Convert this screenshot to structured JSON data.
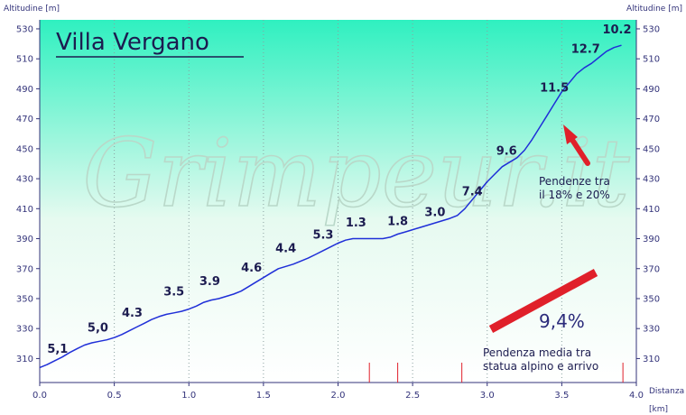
{
  "chart_data": {
    "type": "line",
    "title": "Villa Vergano",
    "watermark": "Grimpeur.it",
    "ylabel_left": "Altitudine [m]",
    "ylabel_right": "Altitudine [m]",
    "xlabel": "Distanza",
    "xunit": "[km]",
    "xlim": [
      0,
      4.0
    ],
    "ylim": [
      294,
      536
    ],
    "x_ticks": [
      "0.0",
      "0.5",
      "1.0",
      "1.5",
      "2.0",
      "2.5",
      "3.0",
      "3.5",
      "4.0"
    ],
    "y_ticks": [
      "310",
      "330",
      "350",
      "370",
      "390",
      "410",
      "430",
      "450",
      "470",
      "490",
      "510",
      "530"
    ],
    "grid": "vertical dotted at each 0.5 km",
    "background_gradient": [
      "#2ff0c0",
      "#e6faf0",
      "#ffffff"
    ],
    "line_color": "#1f2fd8",
    "series": [
      {
        "x": [
          0.0,
          0.05,
          0.1,
          0.15,
          0.2,
          0.25,
          0.3,
          0.35,
          0.4,
          0.45,
          0.5,
          0.55,
          0.6,
          0.65,
          0.7,
          0.75,
          0.8,
          0.85,
          0.9,
          0.95,
          1.0,
          1.05,
          1.1,
          1.15,
          1.2,
          1.25,
          1.3,
          1.35,
          1.4,
          1.45,
          1.5,
          1.55,
          1.6,
          1.65,
          1.7,
          1.75,
          1.8,
          1.85,
          1.9,
          1.95,
          2.0,
          2.05,
          2.1,
          2.15,
          2.2,
          2.25,
          2.3,
          2.35,
          2.4,
          2.45,
          2.5,
          2.55,
          2.6,
          2.65,
          2.7,
          2.75,
          2.8,
          2.85,
          2.9,
          2.95,
          3.0,
          3.05,
          3.1,
          3.15,
          3.2,
          3.25,
          3.3,
          3.35,
          3.4,
          3.45,
          3.5,
          3.55,
          3.6,
          3.65,
          3.7,
          3.75,
          3.8,
          3.85,
          3.9
        ],
        "y": [
          304,
          306,
          308.5,
          311,
          314,
          316.5,
          319,
          320.5,
          321.5,
          322.5,
          324,
          326,
          328.5,
          331,
          333.5,
          336,
          338,
          339.5,
          340.5,
          341.5,
          343,
          345,
          347.5,
          349,
          350,
          351.5,
          353,
          355,
          358,
          361,
          364,
          367,
          370,
          371.5,
          373,
          375,
          377,
          379.5,
          382,
          384.5,
          387,
          389,
          390,
          390,
          390,
          390,
          390,
          391,
          393,
          394.5,
          396,
          397.5,
          399,
          400.5,
          402,
          403.5,
          405.5,
          410,
          416,
          422,
          428,
          433,
          438,
          441,
          444,
          449,
          456,
          464,
          472,
          480,
          488,
          494,
          500,
          504,
          507,
          511,
          515,
          517.5,
          519
        ]
      }
    ],
    "slope_labels": [
      {
        "text": "5,1",
        "x": 0.12,
        "y": 314
      },
      {
        "text": "5,0",
        "x": 0.39,
        "y": 328
      },
      {
        "text": "4.3",
        "x": 0.62,
        "y": 338
      },
      {
        "text": "3.5",
        "x": 0.9,
        "y": 352
      },
      {
        "text": "3.9",
        "x": 1.14,
        "y": 359
      },
      {
        "text": "4.6",
        "x": 1.42,
        "y": 368
      },
      {
        "text": "4.4",
        "x": 1.65,
        "y": 381
      },
      {
        "text": "5.3",
        "x": 1.9,
        "y": 390
      },
      {
        "text": "1.3",
        "x": 2.12,
        "y": 398
      },
      {
        "text": "1.8",
        "x": 2.4,
        "y": 399
      },
      {
        "text": "3.0",
        "x": 2.65,
        "y": 405
      },
      {
        "text": "7.4",
        "x": 2.9,
        "y": 419
      },
      {
        "text": "9.6",
        "x": 3.13,
        "y": 446
      },
      {
        "text": "11.5",
        "x": 3.45,
        "y": 488
      },
      {
        "text": "12.7",
        "x": 3.66,
        "y": 514
      },
      {
        "text": "10.2",
        "x": 3.87,
        "y": 527
      }
    ],
    "segment_markers": [
      2.21,
      2.4,
      2.83,
      3.91
    ],
    "annotations": {
      "steep_note": [
        "Pendenze tra",
        "il 18% e 20%"
      ],
      "avg_value": "9,4%",
      "avg_note": [
        "Pendenza media tra",
        "statua alpino e arrivo"
      ]
    },
    "arrow_color": "#e0202a",
    "bar_color": "#e0202a"
  }
}
